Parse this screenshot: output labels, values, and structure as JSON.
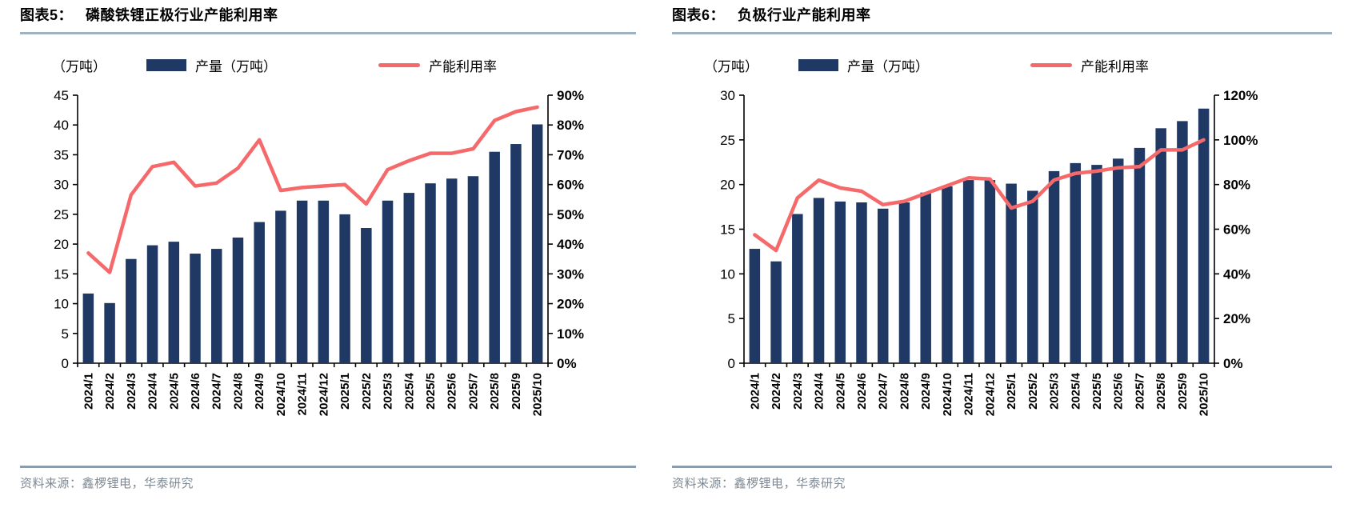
{
  "page": {
    "background": "#ffffff"
  },
  "colors": {
    "bar": "#1F3864",
    "line": "#F5696B",
    "axis": "#000000",
    "title_rule": "#9FB2C1",
    "footer_rule": "#8A9CAD",
    "source_text": "#7E8994"
  },
  "chart_data": [
    {
      "type": "bar+line",
      "header": {
        "prefix": "图表5：",
        "title": "磷酸铁锂正极行业产能利用率"
      },
      "unit_label": "（万吨）",
      "legend": [
        {
          "swatch": "bar",
          "label": "产量（万吨）"
        },
        {
          "swatch": "line",
          "label": "产能利用率"
        }
      ],
      "source": "资料来源：鑫椤锂电，华泰研究",
      "grid": false,
      "legend_position": "top",
      "categories": [
        "2024/1",
        "2024/2",
        "2024/3",
        "2024/4",
        "2024/5",
        "2024/6",
        "2024/7",
        "2024/8",
        "2024/9",
        "2024/10",
        "2024/11",
        "2024/12",
        "2025/1",
        "2025/2",
        "2025/3",
        "2025/4",
        "2025/5",
        "2025/6",
        "2025/7",
        "2025/8",
        "2025/9",
        "2025/10"
      ],
      "series": [
        {
          "name": "产量（万吨）",
          "type": "bar",
          "axis": "left",
          "values": [
            11.7,
            10.1,
            17.5,
            19.8,
            20.4,
            18.4,
            19.2,
            21.1,
            23.7,
            25.6,
            27.3,
            27.3,
            25.0,
            22.7,
            27.3,
            28.6,
            30.2,
            31.0,
            31.4,
            35.5,
            36.8,
            40.1
          ]
        },
        {
          "name": "产能利用率",
          "type": "line",
          "axis": "right",
          "values": [
            37,
            30.5,
            56.5,
            66,
            67.5,
            59.5,
            60.5,
            65.5,
            75,
            58,
            59,
            59.5,
            60,
            53.5,
            65,
            68,
            70.5,
            70.5,
            72,
            81.5,
            84.5,
            86
          ]
        }
      ],
      "left_axis": {
        "min": 0,
        "max": 45,
        "step": 5,
        "ticks": [
          "0",
          "5",
          "10",
          "15",
          "20",
          "25",
          "30",
          "35",
          "40",
          "45"
        ]
      },
      "right_axis": {
        "min": 0,
        "max": 90,
        "step": 10,
        "suffix": "%",
        "ticks": [
          "0%",
          "10%",
          "20%",
          "30%",
          "40%",
          "50%",
          "60%",
          "70%",
          "80%",
          "90%"
        ]
      }
    },
    {
      "type": "bar+line",
      "header": {
        "prefix": "图表6：",
        "title": "负极行业产能利用率"
      },
      "unit_label": "（万吨）",
      "legend": [
        {
          "swatch": "bar",
          "label": "产量（万吨）"
        },
        {
          "swatch": "line",
          "label": "产能利用率"
        }
      ],
      "source": "资料来源：鑫椤锂电，华泰研究",
      "grid": false,
      "legend_position": "top",
      "categories": [
        "2024/1",
        "2024/2",
        "2024/3",
        "2024/4",
        "2024/5",
        "2024/6",
        "2024/7",
        "2024/8",
        "2024/9",
        "2024/10",
        "2024/11",
        "2024/12",
        "2025/1",
        "2025/2",
        "2025/3",
        "2025/4",
        "2025/5",
        "2025/6",
        "2025/7",
        "2025/8",
        "2025/9",
        "2025/10"
      ],
      "series": [
        {
          "name": "产量（万吨）",
          "type": "bar",
          "axis": "left",
          "values": [
            12.8,
            11.4,
            16.7,
            18.5,
            18.1,
            18.0,
            17.3,
            18.0,
            19.1,
            19.8,
            20.5,
            20.5,
            20.1,
            19.3,
            21.5,
            22.4,
            22.2,
            22.9,
            24.1,
            26.3,
            27.1,
            28.5
          ]
        },
        {
          "name": "产能利用率",
          "type": "line",
          "axis": "right",
          "values": [
            57.5,
            50.5,
            74,
            82,
            78.5,
            77,
            71,
            72.5,
            76,
            79.5,
            83,
            82.5,
            69.5,
            72.5,
            82,
            85,
            86,
            87.5,
            88,
            95.5,
            95.5,
            100
          ]
        }
      ],
      "left_axis": {
        "min": 0,
        "max": 30,
        "step": 5,
        "ticks": [
          "0",
          "5",
          "10",
          "15",
          "20",
          "25",
          "30"
        ]
      },
      "right_axis": {
        "min": 0,
        "max": 120,
        "step": 20,
        "suffix": "%",
        "ticks": [
          "0%",
          "20%",
          "40%",
          "60%",
          "80%",
          "100%",
          "120%"
        ]
      }
    }
  ]
}
